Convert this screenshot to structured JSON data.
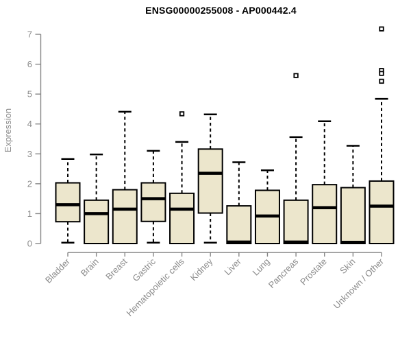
{
  "chart_data": {
    "type": "box",
    "title": "ENSG00000255008 - AP000442.4",
    "ylabel": "Expression",
    "xlabel": "",
    "ylim": [
      0,
      7.3
    ],
    "yticks": [
      0,
      1,
      2,
      3,
      4,
      5,
      6,
      7
    ],
    "grid": false,
    "legend": "none",
    "categories": [
      "Bladder",
      "Brain",
      "Breast",
      "Gastric",
      "Hematopoietic cells",
      "Kidney",
      "Liver",
      "Lung",
      "Pancreas",
      "Prostate",
      "Skin",
      "Unknown / Other"
    ],
    "series": [
      {
        "category": "Bladder",
        "whisker_low": 0.03,
        "q1": 0.73,
        "median": 1.3,
        "q3": 2.03,
        "whisker_high": 2.83,
        "outliers": []
      },
      {
        "category": "Brain",
        "whisker_low": 0,
        "q1": 0,
        "median": 1.0,
        "q3": 1.45,
        "whisker_high": 2.98,
        "outliers": []
      },
      {
        "category": "Breast",
        "whisker_low": 0,
        "q1": 0,
        "median": 1.15,
        "q3": 1.8,
        "whisker_high": 4.41,
        "outliers": []
      },
      {
        "category": "Gastric",
        "whisker_low": 0.03,
        "q1": 0.74,
        "median": 1.5,
        "q3": 2.03,
        "whisker_high": 3.1,
        "outliers": []
      },
      {
        "category": "Hematopoietic cells",
        "whisker_low": 0,
        "q1": 0,
        "median": 1.15,
        "q3": 1.68,
        "whisker_high": 3.4,
        "outliers": [
          4.34
        ]
      },
      {
        "category": "Kidney",
        "whisker_low": 0.03,
        "q1": 1.02,
        "median": 2.35,
        "q3": 3.16,
        "whisker_high": 4.32,
        "outliers": []
      },
      {
        "category": "Liver",
        "whisker_low": 0,
        "q1": 0,
        "median": 0.05,
        "q3": 1.26,
        "whisker_high": 2.72,
        "outliers": []
      },
      {
        "category": "Lung",
        "whisker_low": 0,
        "q1": 0,
        "median": 0.92,
        "q3": 1.78,
        "whisker_high": 2.45,
        "outliers": []
      },
      {
        "category": "Pancreas",
        "whisker_low": 0,
        "q1": 0,
        "median": 0.05,
        "q3": 1.45,
        "whisker_high": 3.56,
        "outliers": [
          5.62
        ]
      },
      {
        "category": "Prostate",
        "whisker_low": 0,
        "q1": 0,
        "median": 1.2,
        "q3": 1.97,
        "whisker_high": 4.09,
        "outliers": []
      },
      {
        "category": "Skin",
        "whisker_low": 0,
        "q1": 0,
        "median": 0.04,
        "q3": 1.87,
        "whisker_high": 3.27,
        "outliers": []
      },
      {
        "category": "Unknown / Other",
        "whisker_low": 0,
        "q1": 0,
        "median": 1.25,
        "q3": 2.09,
        "whisker_high": 4.84,
        "outliers": [
          7.18,
          5.79,
          5.69,
          5.43
        ]
      }
    ],
    "colors": {
      "box_fill": "#ECE6CC",
      "box_border": "#000000",
      "median": "#000000",
      "whisker": "#000000",
      "outlier_fill": "#ffffff",
      "axis_line": "#878787",
      "tick_label": "#8a8a8a",
      "title": "#000000"
    }
  }
}
